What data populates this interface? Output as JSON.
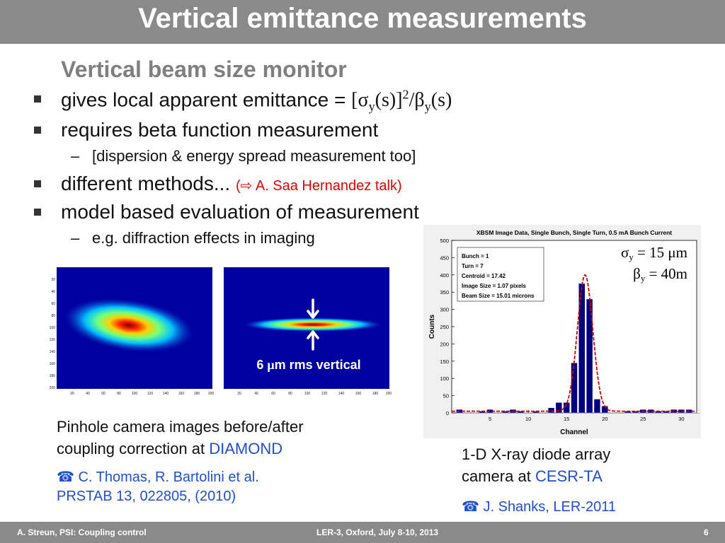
{
  "slide": {
    "title": "Vertical emittance measurements",
    "subtitle": "Vertical beam size monitor",
    "bullets": [
      {
        "text": "gives local apparent emittance = ",
        "formula": {
          "open": "[",
          "sigma": "σ",
          "sub1": "y",
          "arg1": "(s)]",
          "sup": "2",
          "slash": "/",
          "beta": "β",
          "sub2": "y",
          "arg2": "(s)"
        }
      },
      {
        "text": "requires beta function measurement"
      },
      {
        "text": "different methods...",
        "note": "(⇨ A. Saa Hernandez talk)"
      },
      {
        "text": "model based evaluation of measurement"
      }
    ],
    "sub_bullets": [
      {
        "dash": "–",
        "text": "[dispersion & energy spread measurement too]"
      },
      {
        "dash": "–",
        "text": "e.g. diffraction effects in imaging"
      }
    ],
    "pinhole": {
      "y_ticks": [
        "20",
        "40",
        "60",
        "80",
        "100",
        "120",
        "140",
        "160",
        "180",
        "200"
      ],
      "x_ticks": [
        "20",
        "40",
        "60",
        "80",
        "100",
        "120",
        "140",
        "160",
        "180",
        "200"
      ],
      "label_pre": "6 ",
      "label_mu": "μ",
      "label_post": "m rms vertical"
    },
    "caption_left": {
      "line1": "Pinhole camera images before/after",
      "line2_pre": "coupling correction at ",
      "line2_hl": "DIAMOND"
    },
    "ref_left": {
      "icon": "☎",
      "line1": "C. Thomas, R. Bartolini et al.",
      "line2": "PRSTAB 13, 022805, (2010)"
    },
    "caption_right": {
      "line1": "1-D X-ray diode array",
      "line2_pre": "camera at ",
      "line2_hl": "CESR-TA"
    },
    "ref_right": {
      "icon": "☎",
      "text": "J. Shanks, LER-2011"
    },
    "chart_info": {
      "legend": [
        "Bunch = 1",
        "Turn = 7",
        "Centroid = 17.42",
        "Image Size = 1.07 pixels",
        "Beam Size = 15.01 microns"
      ],
      "sigma": {
        "sym": "σ",
        "sub": "y",
        "eq": " = 15 ",
        "mu": "μ",
        "unit": "m"
      },
      "beta": {
        "sym": "β",
        "sub": "y",
        "eq": " = 40m"
      }
    },
    "footer": {
      "left": "A. Streun, PSI: Coupling control",
      "center": "LER-3, Oxford, July 8-10, 2013",
      "page": "6"
    }
  },
  "colors": {
    "title_bar": "#8a8a8a",
    "bar": "#00007f",
    "fit": "#cc0000",
    "link": "#1f4fd0",
    "note": "#e00000"
  },
  "chart_data": {
    "type": "bar",
    "title": "XBSM Image Data, Single Bunch, Single Turn, 0.5 mA Bunch Current",
    "xlabel": "Channel",
    "ylabel": "Counts",
    "xlim": [
      0,
      32
    ],
    "ylim": [
      0,
      500
    ],
    "x_ticks": [
      5,
      10,
      15,
      20,
      25,
      30
    ],
    "y_ticks": [
      0,
      50,
      100,
      150,
      200,
      250,
      300,
      350,
      400,
      450,
      500
    ],
    "x": [
      1,
      2,
      3,
      4,
      5,
      6,
      7,
      8,
      9,
      10,
      11,
      12,
      13,
      14,
      15,
      16,
      17,
      18,
      19,
      20,
      21,
      22,
      23,
      24,
      25,
      26,
      27,
      28,
      29,
      30,
      31,
      32
    ],
    "series": [
      {
        "values": [
          10,
          0,
          0,
          5,
          10,
          0,
          5,
          10,
          5,
          0,
          5,
          0,
          15,
          30,
          30,
          145,
          375,
          330,
          40,
          20,
          0,
          0,
          5,
          5,
          10,
          10,
          5,
          5,
          10,
          10,
          10,
          0
        ]
      }
    ],
    "fit": {
      "type": "gaussian",
      "center": 17.42,
      "amplitude": 395,
      "sigma": 1.0,
      "baseline": 5
    }
  }
}
